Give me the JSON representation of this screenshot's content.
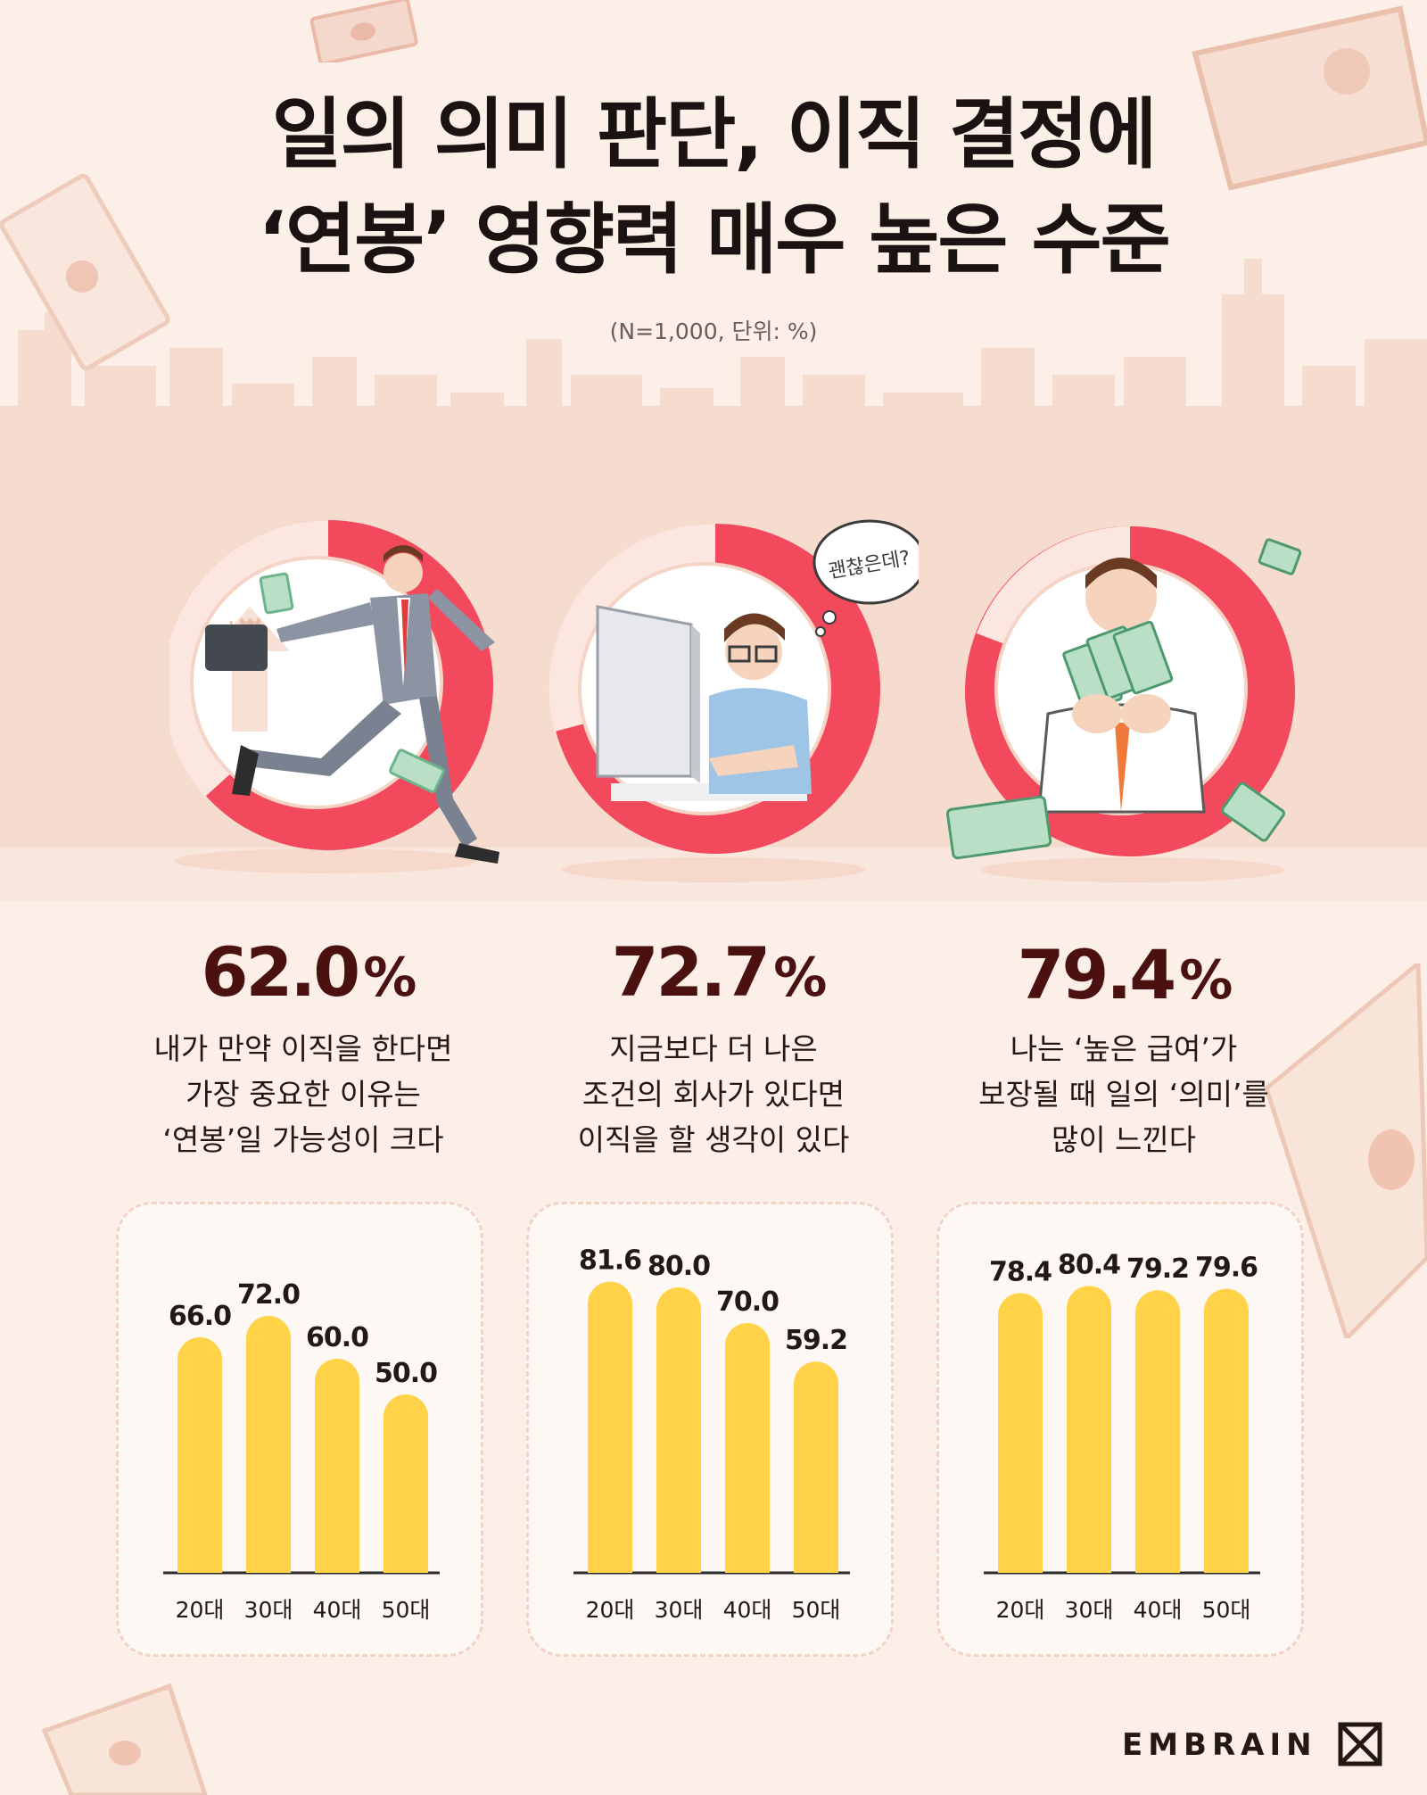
{
  "header": {
    "title_line1": "일의 의미 판단, 이직 결정에",
    "title_line2": "‘연봉’ 영향력 매우 높은 수준",
    "subtitle": "(N=1,000, 단위: %)"
  },
  "illustration": {
    "speech_bubble": "괜찮은데?"
  },
  "stats": [
    {
      "value": "62.0",
      "unit": "%",
      "line1": "내가 만약 이직을 한다면",
      "line2": "가장 중요한 이유는",
      "line3": "‘연봉’일 가능성이 크다"
    },
    {
      "value": "72.7",
      "unit": "%",
      "line1": "지금보다 더 나은",
      "line2": "조건의 회사가 있다면",
      "line3": "이직을 할 생각이 있다"
    },
    {
      "value": "79.4",
      "unit": "%",
      "line1": "나는 ‘높은 급여’가",
      "line2": "보장될 때 일의 ‘의미’를",
      "line3": "많이 느낀다"
    }
  ],
  "colors": {
    "accent_red": "#f24a5c",
    "bar_yellow": "#ffd248",
    "background": "#fcefe8",
    "percent_text": "#4a1110"
  },
  "chart_data": [
    {
      "type": "bar",
      "categories": [
        "20대",
        "30대",
        "40대",
        "50대"
      ],
      "values": [
        66.0,
        72.0,
        60.0,
        50.0
      ],
      "ylim": [
        0,
        100
      ]
    },
    {
      "type": "bar",
      "categories": [
        "20대",
        "30대",
        "40대",
        "50대"
      ],
      "values": [
        81.6,
        80.0,
        70.0,
        59.2
      ],
      "ylim": [
        0,
        100
      ]
    },
    {
      "type": "bar",
      "categories": [
        "20대",
        "30대",
        "40대",
        "50대"
      ],
      "values": [
        78.4,
        80.4,
        79.2,
        79.6
      ],
      "ylim": [
        0,
        100
      ]
    }
  ],
  "brand": {
    "name": "EMBRAIN",
    "logo_icon": "embrain-logo-icon"
  }
}
